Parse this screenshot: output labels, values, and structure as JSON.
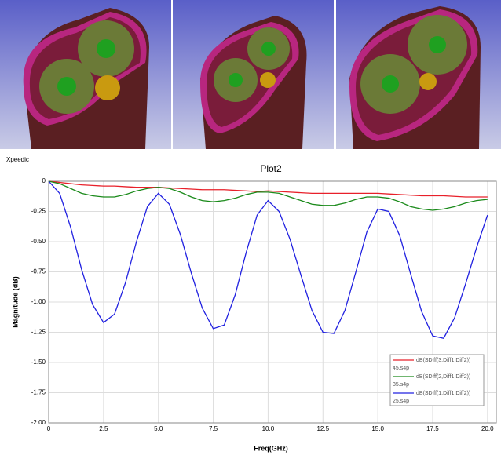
{
  "chart_data": {
    "type": "line",
    "title": "Plot2",
    "watermark": "Xpeedic",
    "x_label": "Freq(GHz)",
    "y_label": "Magnitude (dB)",
    "x": [
      0,
      0.5,
      1,
      1.5,
      2,
      2.5,
      3,
      3.5,
      4,
      4.5,
      5,
      5.5,
      6,
      6.5,
      7,
      7.5,
      8,
      8.5,
      9,
      9.5,
      10,
      10.5,
      11,
      11.5,
      12,
      12.5,
      13,
      13.5,
      14,
      14.5,
      15,
      15.5,
      16,
      16.5,
      17,
      17.5,
      18,
      18.5,
      19,
      19.5,
      20
    ],
    "series": [
      {
        "name": "dB(SDiff(3,Diff1,Diff2))",
        "file": "45.s4p",
        "color": "#e8202a",
        "values": [
          0,
          -0.01,
          -0.02,
          -0.03,
          -0.035,
          -0.04,
          -0.04,
          -0.045,
          -0.05,
          -0.05,
          -0.05,
          -0.055,
          -0.06,
          -0.065,
          -0.07,
          -0.07,
          -0.07,
          -0.075,
          -0.08,
          -0.085,
          -0.08,
          -0.085,
          -0.09,
          -0.095,
          -0.1,
          -0.1,
          -0.1,
          -0.1,
          -0.1,
          -0.1,
          -0.1,
          -0.105,
          -0.11,
          -0.115,
          -0.12,
          -0.12,
          -0.12,
          -0.125,
          -0.13,
          -0.13,
          -0.13
        ]
      },
      {
        "name": "dB(SDiff(2,Diff1,Diff2))",
        "file": "35.s4p",
        "color": "#1a8a1a",
        "values": [
          0,
          -0.02,
          -0.06,
          -0.1,
          -0.12,
          -0.13,
          -0.13,
          -0.11,
          -0.08,
          -0.06,
          -0.05,
          -0.06,
          -0.09,
          -0.13,
          -0.16,
          -0.17,
          -0.16,
          -0.14,
          -0.11,
          -0.09,
          -0.09,
          -0.1,
          -0.13,
          -0.16,
          -0.19,
          -0.2,
          -0.2,
          -0.18,
          -0.15,
          -0.13,
          -0.13,
          -0.14,
          -0.17,
          -0.21,
          -0.23,
          -0.24,
          -0.23,
          -0.21,
          -0.18,
          -0.16,
          -0.15
        ]
      },
      {
        "name": "dB(SDiff(1,Diff1,Diff2))",
        "file": "25.s4p",
        "color": "#2020e0",
        "values": [
          0,
          -0.1,
          -0.38,
          -0.73,
          -1.02,
          -1.17,
          -1.1,
          -0.84,
          -0.5,
          -0.21,
          -0.1,
          -0.19,
          -0.44,
          -0.76,
          -1.05,
          -1.22,
          -1.19,
          -0.94,
          -0.59,
          -0.28,
          -0.16,
          -0.25,
          -0.48,
          -0.78,
          -1.07,
          -1.25,
          -1.26,
          -1.07,
          -0.75,
          -0.42,
          -0.23,
          -0.25,
          -0.45,
          -0.77,
          -1.08,
          -1.28,
          -1.3,
          -1.13,
          -0.85,
          -0.55,
          -0.28
        ]
      }
    ],
    "xlim": [
      0,
      20.4
    ],
    "ylim": [
      -2,
      0
    ],
    "xticks": [
      0,
      2.5,
      {
        "value": 5,
        "label": "5.0"
      },
      7.5,
      {
        "value": 10,
        "label": "10.0"
      },
      12.5,
      {
        "value": 15,
        "label": "15.0"
      },
      17.5,
      {
        "value": 20,
        "label": "20.0"
      }
    ],
    "yticks": [
      0,
      -0.25,
      {
        "value": -0.5,
        "label": "-0.50"
      },
      -0.75,
      {
        "value": -1,
        "label": "-1.00"
      },
      -1.25,
      {
        "value": -1.5,
        "label": "-1.50"
      },
      -1.75,
      {
        "value": -2,
        "label": "-2.00"
      }
    ],
    "grid": true,
    "legend": "lower-right"
  }
}
